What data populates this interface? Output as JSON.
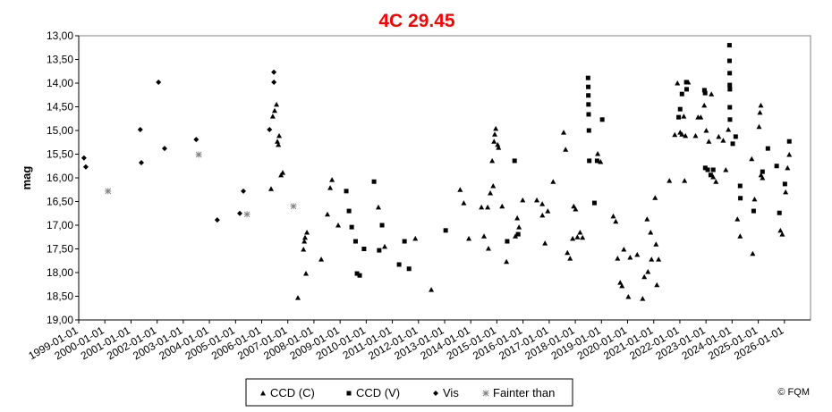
{
  "chart_data": {
    "type": "scatter",
    "title": "4C 29.45",
    "y_label": "mag",
    "credit": "© FQM",
    "title_color": "#ff0000",
    "y_reversed": true,
    "grid": false,
    "legend": "bottom",
    "xlim": [
      "1999-01-01",
      "2027-01-01"
    ],
    "xticks": [
      "1999-01-01",
      "2000-01-01",
      "2001-01-01",
      "2002-01-01",
      "2003-01-01",
      "2004-01-01",
      "2005-01-01",
      "2006-01-01",
      "2007-01-01",
      "2008-01-01",
      "2009-01-01",
      "2010-01-01",
      "2011-01-01",
      "2012-01-01",
      "2013-01-01",
      "2014-01-01",
      "2015-01-01",
      "2016-01-01",
      "2017-01-01",
      "2018-01-01",
      "2019-01-01",
      "2020-01-01",
      "2021-01-01",
      "2022-01-01",
      "2023-01-01",
      "2024-01-01",
      "2025-01-01",
      "2026-01-01"
    ],
    "ylim": [
      13,
      19
    ],
    "yticks": [
      {
        "value": 13,
        "label": "13,00"
      },
      {
        "value": 13.5,
        "label": "13,50"
      },
      {
        "value": 14,
        "label": "14,00"
      },
      {
        "value": 14.5,
        "label": "14,50"
      },
      {
        "value": 15,
        "label": "15,00"
      },
      {
        "value": 15.5,
        "label": "15,50"
      },
      {
        "value": 16,
        "label": "16,00"
      },
      {
        "value": 16.5,
        "label": "16,50"
      },
      {
        "value": 17,
        "label": "17,00"
      },
      {
        "value": 17.5,
        "label": "17,50"
      },
      {
        "value": 18,
        "label": "18,00"
      },
      {
        "value": 18.5,
        "label": "18,50"
      },
      {
        "value": 19,
        "label": "19,00"
      }
    ],
    "series": [
      {
        "name": "CCD (C)",
        "marker": "triangle",
        "color": "#000000",
        "x": [
          "2006-05-12",
          "2006-06-05",
          "2006-07-01",
          "2006-07-27",
          "2006-08-08",
          "2006-08-22",
          "2006-09-02",
          "2006-09-28",
          "2006-10-22",
          "2007-05-22",
          "2007-08-08",
          "2007-08-20",
          "2007-08-30",
          "2007-09-25",
          "2007-09-12",
          "2008-04-12",
          "2008-07-08",
          "2008-08-15",
          "2008-09-10",
          "2008-12-05",
          "2010-09-16",
          "2010-06-20",
          "2011-11-18",
          "2012-06-28",
          "2013-08-05",
          "2013-09-25",
          "2013-12-05",
          "2014-05-30",
          "2014-07-05",
          "2014-08-25",
          "2014-09-05",
          "2014-10-01",
          "2014-11-10",
          "2014-10-27",
          "2014-11-22",
          "2014-12-02",
          "2014-12-16",
          "2015-01-12",
          "2015-01-24",
          "2015-03-15",
          "2015-05-15",
          "2015-09-16",
          "2015-10-12",
          "2015-11-06",
          "2015-12-28",
          "2016-07-12",
          "2016-09-26",
          "2016-09-28",
          "2016-11-03",
          "2016-12-12",
          "2017-02-25",
          "2017-07-22",
          "2017-08-18",
          "2017-09-12",
          "2017-10-20",
          "2017-11-25",
          "2018-01-05",
          "2017-12-10",
          "2018-01-30",
          "2018-03-08",
          "2018-04-12",
          "2018-11-10",
          "2018-12-20",
          "2019-06-15",
          "2019-07-20",
          "2019-08-15",
          "2019-09-20",
          "2019-10-15",
          "2019-11-10",
          "2020-01-12",
          "2020-02-06",
          "2020-05-15",
          "2020-07-30",
          "2020-08-22",
          "2020-09-30",
          "2020-10-12",
          "2020-11-18",
          "2020-12-01",
          "2021-01-20",
          "2021-02-02",
          "2021-02-14",
          "2021-03-10",
          "2021-08-08",
          "2021-10-22",
          "2021-11-28",
          "2022-01-05",
          "2022-01-30",
          "2022-02-25",
          "2022-03-08",
          "2022-03-20",
          "2022-04-28",
          "2022-08-08",
          "2022-09-12",
          "2022-10-20",
          "2022-12-08",
          "2023-01-05",
          "2023-02-10",
          "2023-03-18",
          "2023-04-12",
          "2023-05-20",
          "2023-06-28",
          "2023-08-30",
          "2023-10-05",
          "2023-11-10",
          "2024-03-15",
          "2024-04-22",
          "2024-10-01",
          "2024-10-15",
          "2024-11-10",
          "2025-01-12",
          "2025-01-24",
          "2025-02-06",
          "2025-02-08",
          "2025-03-01",
          "2025-11-06",
          "2025-12-02",
          "2026-01-18",
          "2026-02-14",
          "2026-03-10"
        ],
        "values": [
          16.23,
          14.7,
          14.58,
          14.45,
          15.23,
          15.3,
          15.11,
          15.94,
          15.89,
          18.53,
          17.51,
          17.34,
          17.26,
          17.15,
          18.02,
          17.72,
          16.77,
          16.21,
          16.04,
          17.0,
          17.45,
          16.62,
          17.28,
          18.36,
          16.25,
          16.53,
          17.28,
          16.62,
          17.23,
          16.62,
          17.49,
          16.32,
          16.17,
          15.64,
          15.23,
          15.08,
          14.96,
          15.3,
          15.36,
          16.6,
          17.77,
          17.23,
          16.85,
          17.04,
          16.47,
          16.47,
          16.55,
          16.79,
          17.38,
          16.7,
          16.08,
          15.04,
          15.4,
          17.58,
          17.7,
          17.28,
          16.66,
          16.6,
          17.25,
          17.15,
          17.26,
          15.49,
          15.66,
          16.81,
          16.92,
          17.7,
          18.21,
          18.28,
          17.51,
          18.51,
          17.68,
          17.62,
          18.55,
          18.09,
          16.87,
          17.98,
          17.15,
          17.72,
          16.42,
          17.4,
          18.26,
          17.72,
          16.06,
          15.09,
          14.0,
          15.04,
          15.08,
          14.7,
          16.06,
          15.11,
          13.98,
          15.11,
          14.72,
          14.72,
          14.47,
          15.0,
          15.23,
          14.23,
          15.98,
          16.08,
          15.13,
          15.21,
          15.83,
          14.98,
          16.87,
          17.23,
          15.6,
          17.6,
          16.45,
          14.92,
          14.62,
          14.47,
          15.94,
          16.0,
          17.11,
          17.19,
          16.3,
          15.79,
          15.51
        ]
      },
      {
        "name": "CCD (V)",
        "marker": "square",
        "color": "#000000",
        "x": [
          "2009-03-28",
          "2009-05-05",
          "2009-06-12",
          "2009-08-05",
          "2009-08-25",
          "2009-10-01",
          "2009-12-01",
          "2010-04-20",
          "2010-07-01",
          "2010-08-10",
          "2011-04-05",
          "2011-06-20",
          "2011-08-22",
          "2013-01-15",
          "2015-05-25",
          "2015-09-05",
          "2015-10-25",
          "2018-06-28",
          "2018-07-01",
          "2018-07-02",
          "2018-07-04",
          "2018-07-06",
          "2018-07-10",
          "2018-07-15",
          "2018-09-25",
          "2018-11-01",
          "2019-01-12",
          "2021-12-15",
          "2022-01-05",
          "2022-01-30",
          "2022-04-01",
          "2022-04-05",
          "2022-12-10",
          "2022-12-20",
          "2022-12-22",
          "2023-01-25",
          "2023-03-08",
          "2023-04-12",
          "2023-11-25",
          "2023-11-26",
          "2023-11-28",
          "2023-11-29",
          "2023-12-01",
          "2023-11-30",
          "2023-12-02",
          "2024-01-10",
          "2024-02-20",
          "2024-04-22",
          "2024-04-26",
          "2024-10-28",
          "2025-03-01",
          "2025-05-15",
          "2025-09-15",
          "2025-10-23",
          "2026-01-08",
          "2026-03-10"
        ],
        "values": [
          16.28,
          16.7,
          17.04,
          17.34,
          18.02,
          18.06,
          17.5,
          16.08,
          17.53,
          17.0,
          17.83,
          17.34,
          17.92,
          17.11,
          17.34,
          15.64,
          17.19,
          13.89,
          14.08,
          14.26,
          14.45,
          14.66,
          15.0,
          15.64,
          16.53,
          15.64,
          14.77,
          14.72,
          14.55,
          14.23,
          13.98,
          14.13,
          14.15,
          14.21,
          15.79,
          15.83,
          15.94,
          15.83,
          13.2,
          13.53,
          13.79,
          14.04,
          14.13,
          14.51,
          14.77,
          15.28,
          15.13,
          16.17,
          16.43,
          16.7,
          15.87,
          15.38,
          15.75,
          16.74,
          16.13,
          15.23
        ]
      },
      {
        "name": "Vis",
        "marker": "diamond",
        "color": "#000000",
        "x": [
          "1999-03-15",
          "1999-04-10",
          "2001-05-10",
          "2001-05-25",
          "2002-01-20",
          "2002-04-15",
          "2003-07-01",
          "2004-04-20",
          "2005-03-01",
          "2005-04-20",
          "2006-04-20",
          "2006-06-20",
          "2006-06-21"
        ],
        "values": [
          15.58,
          15.77,
          14.98,
          15.68,
          13.98,
          15.38,
          15.19,
          16.89,
          16.75,
          16.28,
          14.98,
          13.77,
          13.98
        ]
      },
      {
        "name": "Fainter than",
        "marker": "star",
        "color": "#808080",
        "x": [
          "2000-02-15",
          "2003-08-05",
          "2005-06-10",
          "2007-03-20"
        ],
        "values": [
          16.28,
          15.51,
          16.77,
          16.6
        ]
      }
    ]
  }
}
